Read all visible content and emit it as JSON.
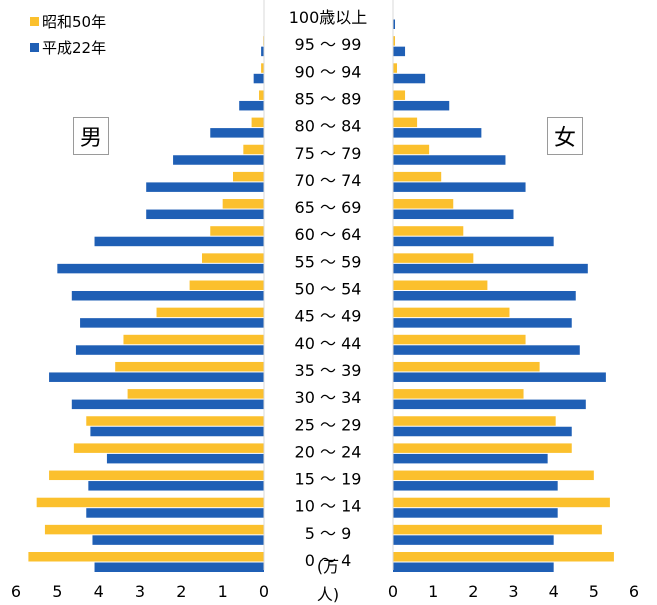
{
  "chart_data": {
    "type": "bar",
    "subtype": "population-pyramid",
    "categories": [
      "100歳以上",
      "95 ～ 99",
      "90 ～ 94",
      "85 ～ 89",
      "80 ～ 84",
      "75 ～ 79",
      "70 ～ 74",
      "65 ～ 69",
      "60 ～ 64",
      "55 ～ 59",
      "50 ～ 54",
      "45 ～ 49",
      "40 ～ 44",
      "35 ～ 39",
      "30 ～ 34",
      "25 ～ 29",
      "20 ～ 24",
      "15 ～ 19",
      "10 ～ 14",
      "5 ～ 9",
      "0 ～ 4"
    ],
    "series": [
      {
        "name": "昭和50年",
        "color": "#FBC02D",
        "male": [
          0,
          0.02,
          0.07,
          0.12,
          0.3,
          0.5,
          0.75,
          1.0,
          1.3,
          1.5,
          1.8,
          2.6,
          3.4,
          3.6,
          3.3,
          4.3,
          4.6,
          5.2,
          5.5,
          5.3,
          5.7
        ],
        "female": [
          0,
          0.05,
          0.1,
          0.3,
          0.6,
          0.9,
          1.2,
          1.5,
          1.75,
          2.0,
          2.35,
          2.9,
          3.3,
          3.65,
          3.25,
          4.05,
          4.45,
          5.0,
          5.4,
          5.2,
          5.5
        ]
      },
      {
        "name": "平成22年",
        "color": "#1F5FB5",
        "male": [
          0.01,
          0.07,
          0.25,
          0.6,
          1.3,
          2.2,
          2.85,
          2.85,
          4.1,
          5.0,
          4.65,
          4.45,
          4.55,
          5.2,
          4.65,
          4.2,
          3.8,
          4.25,
          4.3,
          4.15,
          4.1
        ],
        "female": [
          0.05,
          0.3,
          0.8,
          1.4,
          2.2,
          2.8,
          3.3,
          3.0,
          4.0,
          4.85,
          4.55,
          4.45,
          4.65,
          5.3,
          4.8,
          4.45,
          3.85,
          4.1,
          4.1,
          4.0,
          4.0
        ]
      }
    ],
    "xlim": [
      0,
      6
    ],
    "x_ticks": [
      "0",
      "1",
      "2",
      "3",
      "4",
      "5",
      "6"
    ],
    "unit_label": "(万人)",
    "male_label": "男",
    "female_label": "女",
    "legend_position": "top-left",
    "grid": false
  }
}
